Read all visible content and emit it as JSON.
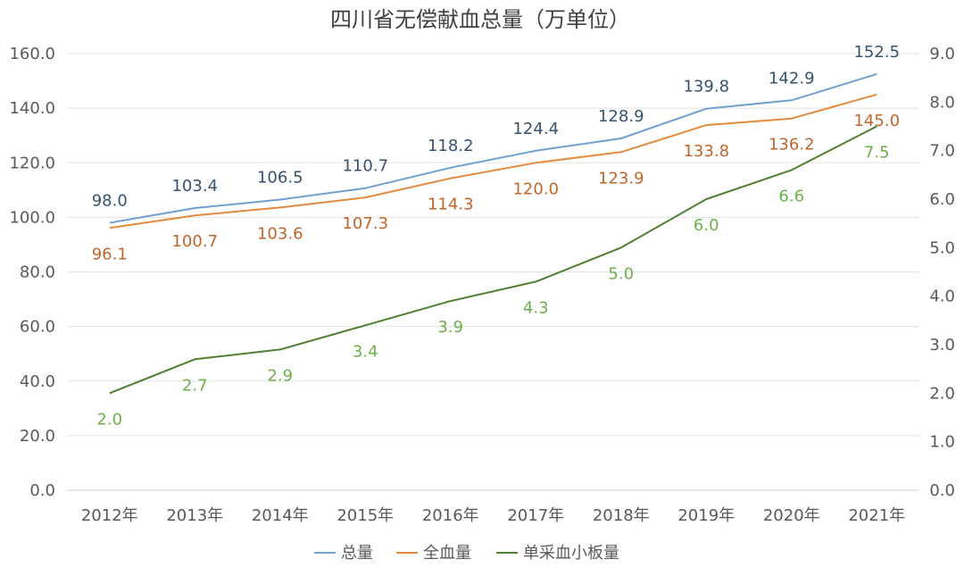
{
  "chart_data": {
    "type": "line",
    "title": "四川省无偿献血总量（万单位）",
    "categories": [
      "2012年",
      "2013年",
      "2014年",
      "2015年",
      "2016年",
      "2017年",
      "2018年",
      "2019年",
      "2020年",
      "2021年"
    ],
    "y_left": {
      "min": 0,
      "max": 160,
      "step": 20,
      "tick_labels": [
        "0.0",
        "20.0",
        "40.0",
        "60.0",
        "80.0",
        "100.0",
        "120.0",
        "140.0",
        "160.0"
      ]
    },
    "y_right": {
      "min": 0,
      "max": 9,
      "step": 1,
      "tick_labels": [
        "0.0",
        "1.0",
        "2.0",
        "3.0",
        "4.0",
        "5.0",
        "6.0",
        "7.0",
        "8.0",
        "9.0"
      ]
    },
    "grid": true,
    "legend_position": "bottom",
    "series": [
      {
        "name": "总量",
        "axis": "left",
        "color": "#6fa0d0",
        "label_color": "#35536f",
        "values": [
          98.0,
          103.4,
          106.5,
          110.7,
          118.2,
          124.4,
          128.9,
          139.8,
          142.9,
          152.5
        ],
        "labels": [
          "98.0",
          "103.4",
          "106.5",
          "110.7",
          "118.2",
          "124.4",
          "128.9",
          "139.8",
          "142.9",
          "152.5"
        ],
        "label_position": "above"
      },
      {
        "name": "全血量",
        "axis": "left",
        "color": "#e38a3c",
        "label_color": "#c0652a",
        "values": [
          96.1,
          100.7,
          103.6,
          107.3,
          114.3,
          120.0,
          123.9,
          133.8,
          136.2,
          145.0
        ],
        "labels": [
          "96.1",
          "100.7",
          "103.6",
          "107.3",
          "114.3",
          "120.0",
          "123.9",
          "133.8",
          "136.2",
          "145.0"
        ],
        "label_position": "below"
      },
      {
        "name": "单采血小板量",
        "axis": "right",
        "color": "#4f7f2f",
        "label_color": "#6db04a",
        "values": [
          2.0,
          2.7,
          2.9,
          3.4,
          3.9,
          4.3,
          5.0,
          6.0,
          6.6,
          7.5
        ],
        "labels": [
          "2.0",
          "2.7",
          "2.9",
          "3.4",
          "3.9",
          "4.3",
          "5.0",
          "6.0",
          "6.6",
          "7.5"
        ],
        "label_position": "below"
      }
    ]
  }
}
